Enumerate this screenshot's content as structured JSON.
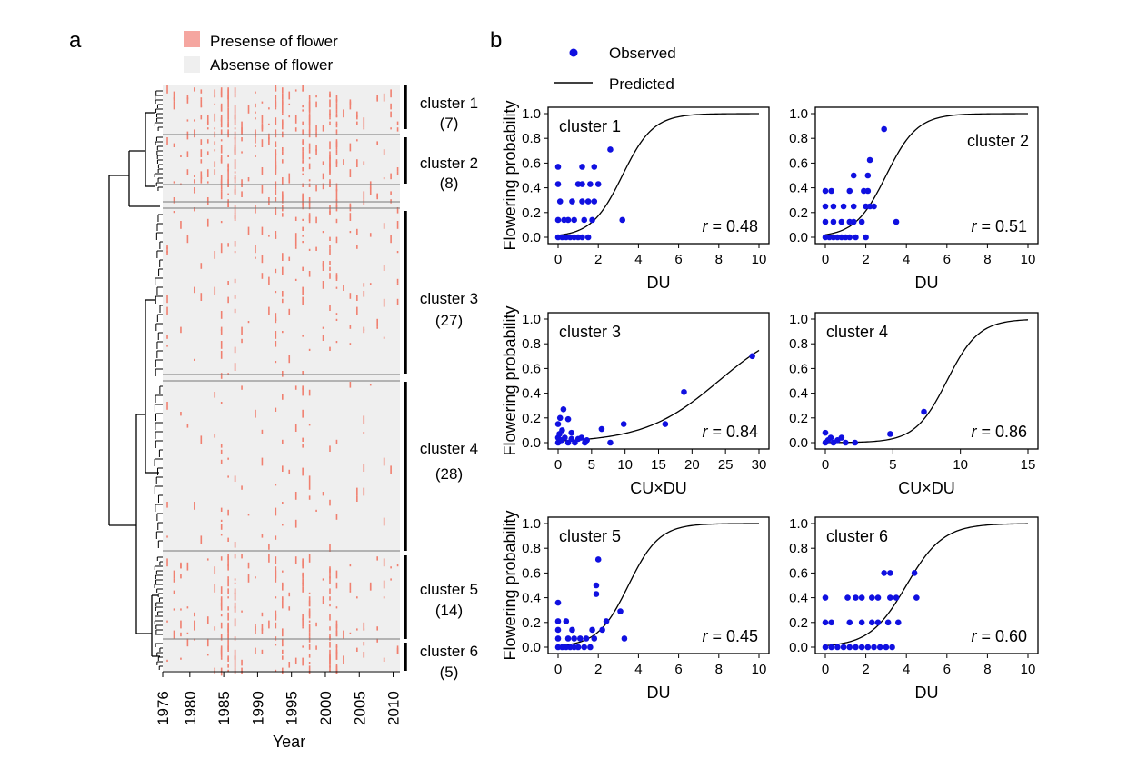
{
  "panel_a": {
    "label": "a",
    "legend": {
      "presence": "Presense of flower",
      "absence": "Absense of flower",
      "presence_color": "#F08070",
      "presence_swatch_color": "#F5A6A0",
      "absence_color": "#EFEFEF"
    },
    "xlabel": "Year",
    "year_ticks": [
      "1976",
      "1980",
      "1985",
      "1990",
      "1995",
      "2000",
      "2005",
      "2010"
    ],
    "clusters": [
      {
        "name": "cluster 1",
        "count": "(7)"
      },
      {
        "name": "cluster 2",
        "count": "(8)"
      },
      {
        "name": "cluster 3",
        "count": "(27)"
      },
      {
        "name": "cluster 4",
        "count": "(28)"
      },
      {
        "name": "cluster 5",
        "count": "(14)"
      },
      {
        "name": "cluster 6",
        "count": "(5)"
      }
    ]
  },
  "panel_b": {
    "label": "b",
    "legend": {
      "observed": "Observed",
      "predicted": "Predicted"
    },
    "marker_color": "#1010E0",
    "ylabel": "Flowering probability"
  },
  "chart_data": [
    {
      "type": "scatter",
      "title": "cluster 1",
      "xlabel": "DU",
      "ylabel": "Flowering probability",
      "xlim": [
        0,
        10
      ],
      "ylim": [
        0,
        1
      ],
      "xticks": [
        "0",
        "2",
        "4",
        "6",
        "8",
        "10"
      ],
      "yticks": [
        "0.0",
        "0.2",
        "0.4",
        "0.6",
        "0.8",
        "1.0"
      ],
      "r_label": "r",
      "r_value": "= 0.48",
      "points": [
        [
          0,
          0
        ],
        [
          0.2,
          0
        ],
        [
          0.4,
          0
        ],
        [
          0.6,
          0
        ],
        [
          0.8,
          0
        ],
        [
          1,
          0
        ],
        [
          1.2,
          0
        ],
        [
          1.5,
          0
        ],
        [
          0,
          0.14
        ],
        [
          0.3,
          0.14
        ],
        [
          0.5,
          0.14
        ],
        [
          0.8,
          0.14
        ],
        [
          1.3,
          0.14
        ],
        [
          1.7,
          0.14
        ],
        [
          3.2,
          0.14
        ],
        [
          0.1,
          0.29
        ],
        [
          0.7,
          0.29
        ],
        [
          1.2,
          0.29
        ],
        [
          1.5,
          0.29
        ],
        [
          1.8,
          0.29
        ],
        [
          0,
          0.43
        ],
        [
          1,
          0.43
        ],
        [
          1.2,
          0.43
        ],
        [
          1.6,
          0.43
        ],
        [
          2,
          0.43
        ],
        [
          0,
          0.57
        ],
        [
          1.2,
          0.57
        ],
        [
          1.8,
          0.57
        ],
        [
          2.6,
          0.71
        ]
      ],
      "curve": {
        "a": 3.2,
        "b": 1.3
      }
    },
    {
      "type": "scatter",
      "title": "cluster 2",
      "xlabel": "DU",
      "ylabel": "Flowering probability",
      "xlim": [
        0,
        10
      ],
      "ylim": [
        0,
        1
      ],
      "xticks": [
        "0",
        "2",
        "4",
        "6",
        "8",
        "10"
      ],
      "yticks": [
        "0.0",
        "0.2",
        "0.4",
        "0.6",
        "0.8",
        "1.0"
      ],
      "r_label": "r",
      "r_value": "= 0.51",
      "points": [
        [
          0,
          0
        ],
        [
          0.2,
          0
        ],
        [
          0.4,
          0
        ],
        [
          0.6,
          0
        ],
        [
          0.8,
          0
        ],
        [
          1,
          0
        ],
        [
          1.2,
          0
        ],
        [
          1.5,
          0
        ],
        [
          2,
          0
        ],
        [
          0,
          0.125
        ],
        [
          0.4,
          0.125
        ],
        [
          0.8,
          0.125
        ],
        [
          1.2,
          0.125
        ],
        [
          1.4,
          0.125
        ],
        [
          1.8,
          0.125
        ],
        [
          3.5,
          0.125
        ],
        [
          0,
          0.25
        ],
        [
          0.4,
          0.25
        ],
        [
          0.9,
          0.25
        ],
        [
          1.4,
          0.25
        ],
        [
          2,
          0.25
        ],
        [
          2.2,
          0.25
        ],
        [
          2.4,
          0.25
        ],
        [
          0,
          0.375
        ],
        [
          0.3,
          0.375
        ],
        [
          1.2,
          0.375
        ],
        [
          1.9,
          0.375
        ],
        [
          2.1,
          0.375
        ],
        [
          1.4,
          0.5
        ],
        [
          2.1,
          0.5
        ],
        [
          2.2,
          0.625
        ],
        [
          2.9,
          0.875
        ]
      ],
      "curve": {
        "a": 3.0,
        "b": 1.3
      }
    },
    {
      "type": "scatter",
      "title": "cluster 3",
      "xlabel": "CU×DU",
      "ylabel": "Flowering probability",
      "xlim": [
        0,
        30
      ],
      "ylim": [
        0,
        1
      ],
      "xticks": [
        "0",
        "5",
        "10",
        "15",
        "20",
        "25",
        "30"
      ],
      "yticks": [
        "0.0",
        "0.2",
        "0.4",
        "0.6",
        "0.8",
        "1.0"
      ],
      "r_label": "r",
      "r_value": "= 0.84",
      "points": [
        [
          0,
          0
        ],
        [
          0.5,
          0.02
        ],
        [
          1,
          0.04
        ],
        [
          1.5,
          0
        ],
        [
          2,
          0.03
        ],
        [
          2.5,
          0
        ],
        [
          3,
          0.03
        ],
        [
          3.5,
          0.04
        ],
        [
          4,
          0
        ],
        [
          4.3,
          0.02
        ],
        [
          0,
          0.04
        ],
        [
          0.2,
          0.07
        ],
        [
          0.6,
          0.1
        ],
        [
          0,
          0.15
        ],
        [
          0.3,
          0.2
        ],
        [
          1.5,
          0.19
        ],
        [
          0.8,
          0.27
        ],
        [
          2,
          0.08
        ],
        [
          6.5,
          0.11
        ],
        [
          7.8,
          0
        ],
        [
          9.8,
          0.15
        ],
        [
          16,
          0.15
        ],
        [
          18.8,
          0.41
        ],
        [
          29,
          0.7
        ]
      ],
      "curve": {
        "a": 24,
        "b": 0.18
      }
    },
    {
      "type": "scatter",
      "title": "cluster 4",
      "xlabel": "CU×DU",
      "ylabel": "Flowering probability",
      "xlim": [
        0,
        15
      ],
      "ylim": [
        0,
        1
      ],
      "xticks": [
        "0",
        "5",
        "10",
        "15"
      ],
      "yticks": [
        "0.0",
        "0.2",
        "0.4",
        "0.6",
        "0.8",
        "1.0"
      ],
      "r_label": "r",
      "r_value": "= 0.86",
      "points": [
        [
          0,
          0
        ],
        [
          0.2,
          0.02
        ],
        [
          0.4,
          0.04
        ],
        [
          0,
          0.08
        ],
        [
          0.6,
          0
        ],
        [
          0.9,
          0.02
        ],
        [
          1.2,
          0.04
        ],
        [
          1.5,
          0
        ],
        [
          2.2,
          0
        ],
        [
          4.8,
          0.07
        ],
        [
          7.3,
          0.25
        ]
      ],
      "curve": {
        "a": 9.0,
        "b": 0.85
      }
    },
    {
      "type": "scatter",
      "title": "cluster 5",
      "xlabel": "DU",
      "ylabel": "Flowering probability",
      "xlim": [
        0,
        10
      ],
      "ylim": [
        0,
        1
      ],
      "xticks": [
        "0",
        "2",
        "4",
        "6",
        "8",
        "10"
      ],
      "yticks": [
        "0.0",
        "0.2",
        "0.4",
        "0.6",
        "0.8",
        "1.0"
      ],
      "r_label": "r",
      "r_value": "= 0.45",
      "points": [
        [
          0,
          0
        ],
        [
          0.2,
          0
        ],
        [
          0.4,
          0
        ],
        [
          0.6,
          0
        ],
        [
          0.8,
          0
        ],
        [
          1,
          0
        ],
        [
          1.3,
          0
        ],
        [
          1.6,
          0
        ],
        [
          0,
          0.07
        ],
        [
          0.5,
          0.07
        ],
        [
          0.8,
          0.07
        ],
        [
          1.1,
          0.07
        ],
        [
          1.4,
          0.07
        ],
        [
          1.8,
          0.07
        ],
        [
          3.3,
          0.07
        ],
        [
          0,
          0.14
        ],
        [
          0.7,
          0.14
        ],
        [
          1.7,
          0.14
        ],
        [
          2.2,
          0.14
        ],
        [
          0,
          0.21
        ],
        [
          0.4,
          0.21
        ],
        [
          2.4,
          0.21
        ],
        [
          3.1,
          0.29
        ],
        [
          0,
          0.36
        ],
        [
          1.9,
          0.43
        ],
        [
          1.9,
          0.5
        ],
        [
          2.0,
          0.71
        ]
      ],
      "curve": {
        "a": 3.5,
        "b": 1.3
      }
    },
    {
      "type": "scatter",
      "title": "cluster 6",
      "xlabel": "DU",
      "ylabel": "Flowering probability",
      "xlim": [
        0,
        10
      ],
      "ylim": [
        0,
        1
      ],
      "xticks": [
        "0",
        "2",
        "4",
        "6",
        "8",
        "10"
      ],
      "yticks": [
        "0.0",
        "0.2",
        "0.4",
        "0.6",
        "0.8",
        "1.0"
      ],
      "r_label": "r",
      "r_value": "= 0.60",
      "points": [
        [
          0,
          0
        ],
        [
          0.3,
          0
        ],
        [
          0.6,
          0
        ],
        [
          0.9,
          0
        ],
        [
          1.2,
          0
        ],
        [
          1.5,
          0
        ],
        [
          1.8,
          0
        ],
        [
          2.1,
          0
        ],
        [
          2.4,
          0
        ],
        [
          2.7,
          0
        ],
        [
          3,
          0
        ],
        [
          3.3,
          0
        ],
        [
          0,
          0.2
        ],
        [
          0.3,
          0.2
        ],
        [
          1.2,
          0.2
        ],
        [
          1.8,
          0.2
        ],
        [
          2.3,
          0.2
        ],
        [
          2.6,
          0.2
        ],
        [
          3.1,
          0.2
        ],
        [
          3.6,
          0.2
        ],
        [
          0,
          0.4
        ],
        [
          1.1,
          0.4
        ],
        [
          1.5,
          0.4
        ],
        [
          1.8,
          0.4
        ],
        [
          2.3,
          0.4
        ],
        [
          2.6,
          0.4
        ],
        [
          3.2,
          0.4
        ],
        [
          3.5,
          0.4
        ],
        [
          4.5,
          0.4
        ],
        [
          2.9,
          0.6
        ],
        [
          3.2,
          0.6
        ],
        [
          4.4,
          0.6
        ]
      ],
      "curve": {
        "a": 4.0,
        "b": 1.1
      }
    }
  ]
}
